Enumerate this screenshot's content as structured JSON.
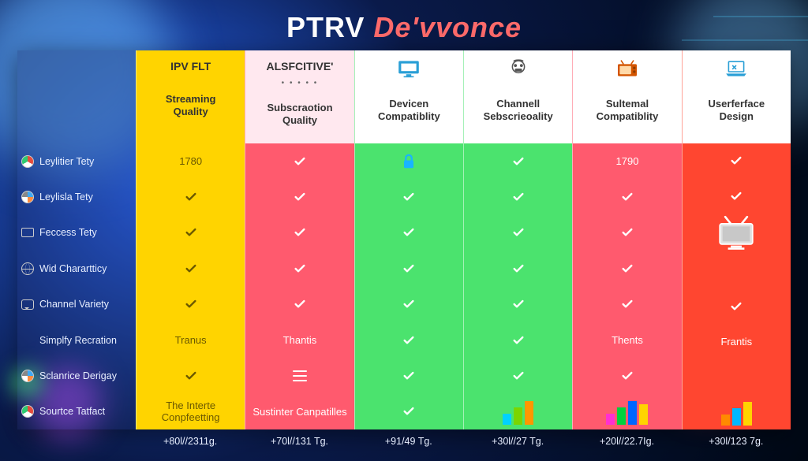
{
  "title_left": "PTRV ",
  "title_right": "De'vvonce",
  "colors": {
    "col0": "#ffd400",
    "col1": "#ff5a6e",
    "col2": "#4be36e",
    "col3": "#4be36e",
    "col4": "#ff5a6e",
    "col5": "#ff4630",
    "check_green": "#1db954",
    "check_white": "#ffffff",
    "lock": "#19b4ff",
    "text_dark": "#6b5800"
  },
  "side_rows": [
    {
      "icon": "badge",
      "label": "Leylitier Tety"
    },
    {
      "icon": "badge2",
      "label": "Leylisla Tety"
    },
    {
      "icon": "sq",
      "label": "Feccess Tety"
    },
    {
      "icon": "globe",
      "label": "Wid Charartticy"
    },
    {
      "icon": "chat",
      "label": "Channel Variety"
    },
    {
      "icon": "",
      "label": "Simplfy Recration"
    },
    {
      "icon": "badge2",
      "label": "Sclanrice Derigay"
    },
    {
      "icon": "badge",
      "label": "Sourtce Tatfact"
    }
  ],
  "columns": [
    {
      "brand": "IPV FLT",
      "brand_sub": "",
      "brand_icon": "none",
      "category": "Streaming Quality",
      "cells": [
        "1780",
        "check",
        "check",
        "check",
        "check",
        "Tranus",
        "check",
        "The Interte Conpfeetting"
      ],
      "bottom": "+80l//2311g."
    },
    {
      "brand": "ALSFCITIVE'",
      "brand_sub": "dots",
      "brand_icon": "none",
      "category": "Subscraotion Quality",
      "cells": [
        "check",
        "check",
        "check",
        "check",
        "check",
        "Thantis",
        "list",
        "Sustinter Canpatilles"
      ],
      "bottom": "+70l//131 Tg."
    },
    {
      "brand": "",
      "brand_icon": "monitor",
      "category": "Devicen Compatiblity",
      "cells": [
        "lock",
        "check",
        "check",
        "check",
        "check",
        "check",
        "check",
        "check"
      ],
      "bottom": "+91/49 Tg."
    },
    {
      "brand": "",
      "brand_icon": "router",
      "category": "Channell Sebscrieoality",
      "cells": [
        "check",
        "check",
        "check",
        "check",
        "check",
        "check",
        "check",
        "bars:#00d2ff,#7bd500,#ff9600"
      ],
      "bottom": "+30l//27 Tg."
    },
    {
      "brand": "",
      "brand_icon": "tv-old",
      "category": "Sultemal Compatiblity",
      "cells": [
        "1790",
        "check",
        "check",
        "check",
        "check",
        "Thents",
        "check",
        "bars:#ff2fd2,#00d23c,#0066ff,#ffd400"
      ],
      "bottom": "+20l//22.7Ig."
    },
    {
      "brand": "",
      "brand_icon": "laptop",
      "category": "Userferface Design",
      "cells": [
        "check",
        "check",
        "tv",
        "",
        "check",
        "Frantis",
        "",
        "bars:#ff8a00,#00b7ff,#ffd400"
      ],
      "bottom": "+30l/123 7g."
    }
  ]
}
